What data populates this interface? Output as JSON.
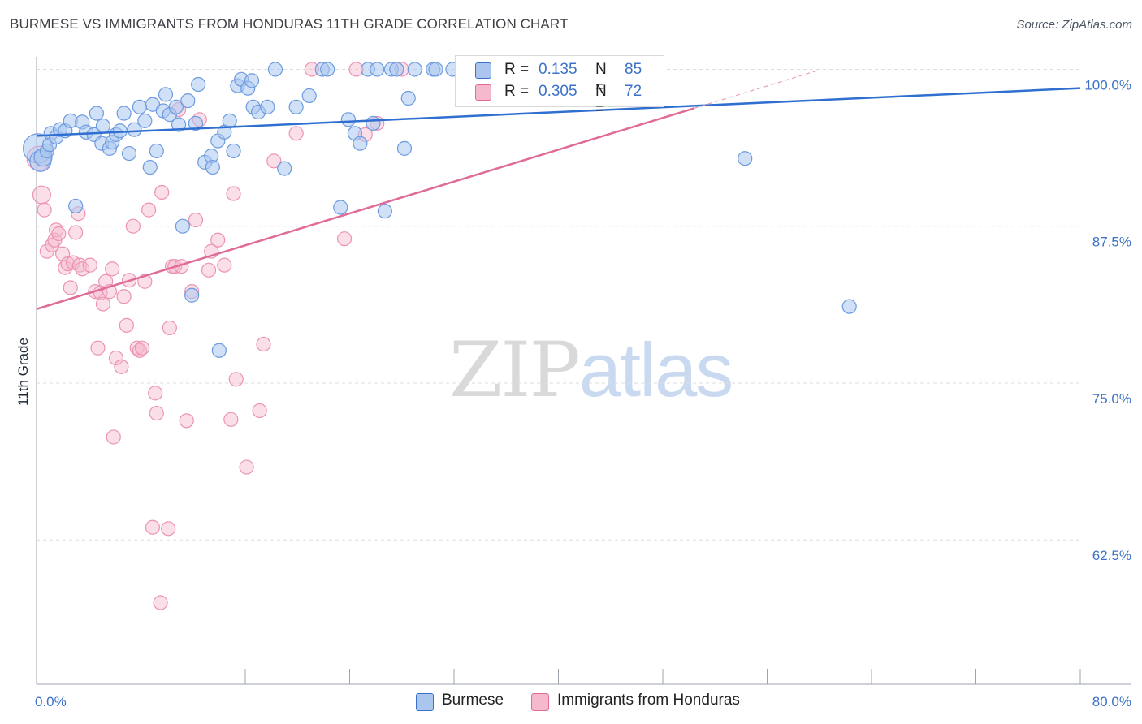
{
  "title": "BURMESE VS IMMIGRANTS FROM HONDURAS 11TH GRADE CORRELATION CHART",
  "source": "Source: ZipAtlas.com",
  "watermark": {
    "zip": "ZIP",
    "atlas": "atlas"
  },
  "colors": {
    "blue": "#3b72c8",
    "blue_fill": "#aac6ee",
    "pink": "#e06b98",
    "pink_fill": "#f5b8cd",
    "grid": "#dddddd",
    "axis": "#9ca3af"
  },
  "legend": {
    "series": [
      {
        "name": "Burmese",
        "r_label": "R =",
        "r_value": "0.135",
        "n_label": "N =",
        "n_value": "85"
      },
      {
        "name": "Immigrants from Honduras",
        "r_label": "R =",
        "r_value": "0.305",
        "n_label": "N =",
        "n_value": "72"
      }
    ]
  },
  "chart_data": {
    "type": "scatter",
    "title": "BURMESE VS IMMIGRANTS FROM HONDURAS 11TH GRADE CORRELATION CHART",
    "xlabel": "",
    "ylabel": "11th Grade",
    "xlim": [
      0,
      80
    ],
    "ylim": [
      51,
      101
    ],
    "x_tick_labels": [
      "0.0%",
      "80.0%"
    ],
    "y_ticks": [
      62.5,
      75.0,
      87.5,
      100.0
    ],
    "y_tick_labels": [
      "62.5%",
      "75.0%",
      "87.5%",
      "100.0%"
    ],
    "grid": true,
    "legend_position": "top-center",
    "series": [
      {
        "name": "Burmese",
        "color": "#3b72c8",
        "trend": {
          "x": [
            0,
            80
          ],
          "y": [
            94.7,
            98.5
          ]
        },
        "points": [
          [
            0.1,
            93.7
          ],
          [
            0.3,
            92.7
          ],
          [
            0.5,
            93.0
          ],
          [
            0.8,
            93.5
          ],
          [
            1.0,
            94.0
          ],
          [
            1.1,
            94.9
          ],
          [
            1.5,
            94.6
          ],
          [
            1.8,
            95.2
          ],
          [
            2.2,
            95.1
          ],
          [
            2.6,
            95.9
          ],
          [
            3.0,
            89.1
          ],
          [
            3.5,
            95.8
          ],
          [
            3.8,
            95.0
          ],
          [
            4.4,
            94.8
          ],
          [
            4.6,
            96.5
          ],
          [
            5.0,
            94.1
          ],
          [
            5.1,
            95.5
          ],
          [
            5.6,
            93.7
          ],
          [
            5.8,
            94.2
          ],
          [
            6.1,
            94.8
          ],
          [
            6.4,
            95.1
          ],
          [
            6.7,
            96.5
          ],
          [
            7.1,
            93.3
          ],
          [
            7.5,
            95.2
          ],
          [
            7.9,
            97.0
          ],
          [
            8.3,
            95.9
          ],
          [
            8.7,
            92.2
          ],
          [
            8.9,
            97.2
          ],
          [
            9.2,
            93.5
          ],
          [
            9.7,
            96.7
          ],
          [
            9.9,
            98.0
          ],
          [
            10.2,
            96.4
          ],
          [
            10.7,
            97.0
          ],
          [
            10.9,
            95.6
          ],
          [
            11.2,
            87.5
          ],
          [
            11.6,
            97.5
          ],
          [
            11.9,
            82.0
          ],
          [
            12.2,
            95.7
          ],
          [
            12.4,
            98.8
          ],
          [
            12.9,
            92.6
          ],
          [
            13.4,
            93.1
          ],
          [
            13.5,
            92.2
          ],
          [
            13.9,
            94.3
          ],
          [
            14.0,
            77.6
          ],
          [
            14.4,
            95.0
          ],
          [
            14.8,
            95.9
          ],
          [
            15.1,
            93.5
          ],
          [
            15.4,
            98.7
          ],
          [
            15.7,
            99.2
          ],
          [
            16.2,
            98.5
          ],
          [
            16.5,
            99.1
          ],
          [
            16.6,
            97.0
          ],
          [
            17.0,
            96.6
          ],
          [
            17.7,
            97.0
          ],
          [
            18.3,
            100.0
          ],
          [
            19.0,
            92.1
          ],
          [
            19.9,
            97.0
          ],
          [
            20.9,
            97.9
          ],
          [
            21.9,
            100.0
          ],
          [
            22.3,
            100.0
          ],
          [
            23.3,
            89.0
          ],
          [
            23.9,
            96.0
          ],
          [
            24.4,
            94.9
          ],
          [
            24.8,
            94.1
          ],
          [
            25.4,
            100.0
          ],
          [
            25.8,
            95.7
          ],
          [
            26.1,
            100.0
          ],
          [
            26.7,
            88.7
          ],
          [
            27.2,
            100.0
          ],
          [
            27.6,
            100.0
          ],
          [
            28.2,
            93.7
          ],
          [
            28.5,
            97.7
          ],
          [
            29.0,
            100.0
          ],
          [
            30.4,
            100.0
          ],
          [
            30.6,
            100.0
          ],
          [
            31.9,
            100.0
          ],
          [
            33.2,
            100.0
          ],
          [
            34.0,
            99.0
          ],
          [
            34.3,
            100.0
          ],
          [
            35.0,
            100.0
          ],
          [
            36.7,
            100.0
          ],
          [
            38.1,
            100.0
          ],
          [
            39.5,
            100.0
          ],
          [
            54.3,
            92.9
          ],
          [
            62.3,
            81.1
          ]
        ]
      },
      {
        "name": "Immigrants from Honduras",
        "color": "#e06b98",
        "trend": {
          "x": [
            0,
            50.4
          ],
          "y": [
            80.9,
            96.9
          ]
        },
        "points": [
          [
            0.2,
            92.9
          ],
          [
            0.4,
            90.0
          ],
          [
            0.6,
            88.8
          ],
          [
            0.8,
            85.5
          ],
          [
            1.2,
            86.0
          ],
          [
            1.4,
            86.4
          ],
          [
            1.5,
            87.2
          ],
          [
            1.7,
            86.9
          ],
          [
            2.0,
            85.3
          ],
          [
            2.2,
            84.2
          ],
          [
            2.4,
            84.5
          ],
          [
            2.6,
            82.6
          ],
          [
            2.8,
            84.6
          ],
          [
            3.0,
            87.0
          ],
          [
            3.2,
            88.5
          ],
          [
            3.3,
            84.4
          ],
          [
            3.5,
            84.1
          ],
          [
            4.1,
            84.4
          ],
          [
            4.5,
            82.3
          ],
          [
            4.7,
            77.8
          ],
          [
            4.9,
            82.2
          ],
          [
            5.1,
            81.3
          ],
          [
            5.3,
            83.1
          ],
          [
            5.6,
            82.3
          ],
          [
            5.8,
            84.1
          ],
          [
            5.9,
            70.7
          ],
          [
            6.1,
            77.0
          ],
          [
            6.5,
            76.3
          ],
          [
            6.7,
            81.9
          ],
          [
            6.9,
            79.6
          ],
          [
            7.1,
            83.2
          ],
          [
            7.4,
            87.5
          ],
          [
            7.7,
            77.8
          ],
          [
            7.9,
            77.6
          ],
          [
            8.1,
            77.8
          ],
          [
            8.3,
            83.1
          ],
          [
            8.6,
            88.8
          ],
          [
            8.9,
            63.5
          ],
          [
            9.1,
            74.2
          ],
          [
            9.2,
            72.6
          ],
          [
            9.5,
            57.5
          ],
          [
            9.6,
            90.2
          ],
          [
            10.1,
            63.4
          ],
          [
            10.2,
            79.4
          ],
          [
            10.4,
            84.3
          ],
          [
            10.6,
            84.3
          ],
          [
            10.9,
            96.8
          ],
          [
            11.1,
            84.3
          ],
          [
            11.5,
            72.0
          ],
          [
            11.9,
            82.3
          ],
          [
            12.2,
            88.0
          ],
          [
            12.5,
            96.0
          ],
          [
            13.2,
            84.0
          ],
          [
            13.4,
            85.5
          ],
          [
            13.9,
            86.4
          ],
          [
            14.4,
            84.4
          ],
          [
            14.9,
            72.1
          ],
          [
            15.1,
            90.1
          ],
          [
            15.3,
            75.3
          ],
          [
            16.1,
            68.3
          ],
          [
            17.1,
            72.8
          ],
          [
            17.4,
            78.1
          ],
          [
            18.2,
            92.7
          ],
          [
            19.9,
            94.9
          ],
          [
            21.1,
            100.0
          ],
          [
            23.6,
            86.5
          ],
          [
            24.5,
            100.0
          ],
          [
            25.2,
            94.8
          ],
          [
            26.1,
            95.7
          ],
          [
            28.0,
            100.0
          ],
          [
            38.5,
            100.0
          ],
          [
            41.5,
            100.0
          ]
        ]
      }
    ]
  }
}
